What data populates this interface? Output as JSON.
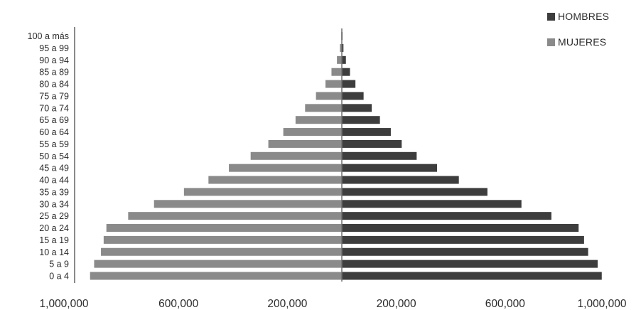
{
  "chart_data": {
    "type": "bar",
    "orientation": "horizontal",
    "layout": "population-pyramid",
    "categories": [
      "0 a 4",
      "5 a 9",
      "10 a 14",
      "15 a 19",
      "20 a 24",
      "25 a 29",
      "30 a 34",
      "35 a 39",
      "40 a 44",
      "45 a 49",
      "50 a 54",
      "55 a 59",
      "60 a 64",
      "65 a 69",
      "70 a 74",
      "75 a 79",
      "80 a 84",
      "85 a 89",
      "90 a 94",
      "95 a 99",
      "100 a más"
    ],
    "series": [
      {
        "name": "HOMBRES",
        "color": "#3d3d3d",
        "side": "right",
        "values": [
          955000,
          940000,
          905000,
          890000,
          870000,
          770000,
          660000,
          535000,
          430000,
          350000,
          275000,
          220000,
          180000,
          140000,
          110000,
          80000,
          50000,
          30000,
          15000,
          6000,
          2000
        ]
      },
      {
        "name": "MUJERES",
        "color": "#8a8a8a",
        "side": "left",
        "values": [
          925000,
          910000,
          885000,
          875000,
          865000,
          785000,
          690000,
          580000,
          490000,
          415000,
          335000,
          270000,
          215000,
          170000,
          135000,
          95000,
          60000,
          38000,
          18000,
          7000,
          2000
        ]
      }
    ],
    "x_tick_labels": [
      "1,000,000",
      "600,000",
      "200,000",
      "200,000",
      "600,000",
      "1,000,000"
    ],
    "xlim": [
      -1000000,
      1000000
    ],
    "legend_position": "top-right",
    "grid": false
  }
}
